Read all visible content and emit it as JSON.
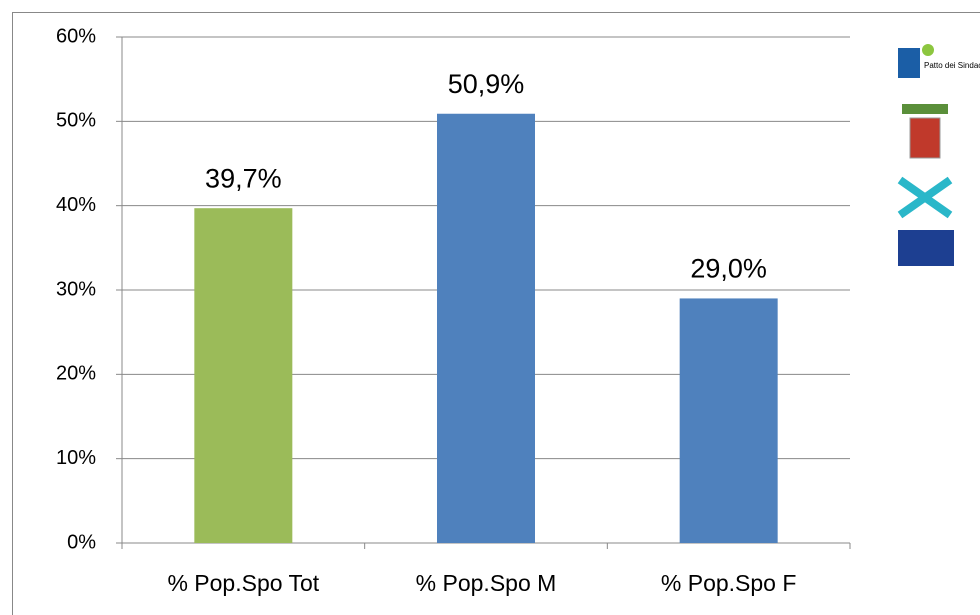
{
  "chart_data": {
    "type": "bar",
    "categories": [
      "% Pop.Spo Tot",
      "% Pop.Spo M",
      "% Pop.Spo F"
    ],
    "values": [
      39.7,
      50.9,
      29.0
    ],
    "value_labels": [
      "39,7%",
      "50,9%",
      "29,0%"
    ],
    "colors": [
      "#9bbb59",
      "#4f81bd",
      "#4f81bd"
    ],
    "ylim": [
      0,
      60
    ],
    "yticks": [
      {
        "value": 0,
        "label": "0%"
      },
      {
        "value": 10,
        "label": "10%"
      },
      {
        "value": 20,
        "label": "20%"
      },
      {
        "value": 30,
        "label": "30%"
      },
      {
        "value": 40,
        "label": "40%"
      },
      {
        "value": 50,
        "label": "50%"
      },
      {
        "value": 60,
        "label": "60%"
      }
    ],
    "grid": true,
    "annotations": [
      "Patto dei Sindaci"
    ]
  }
}
